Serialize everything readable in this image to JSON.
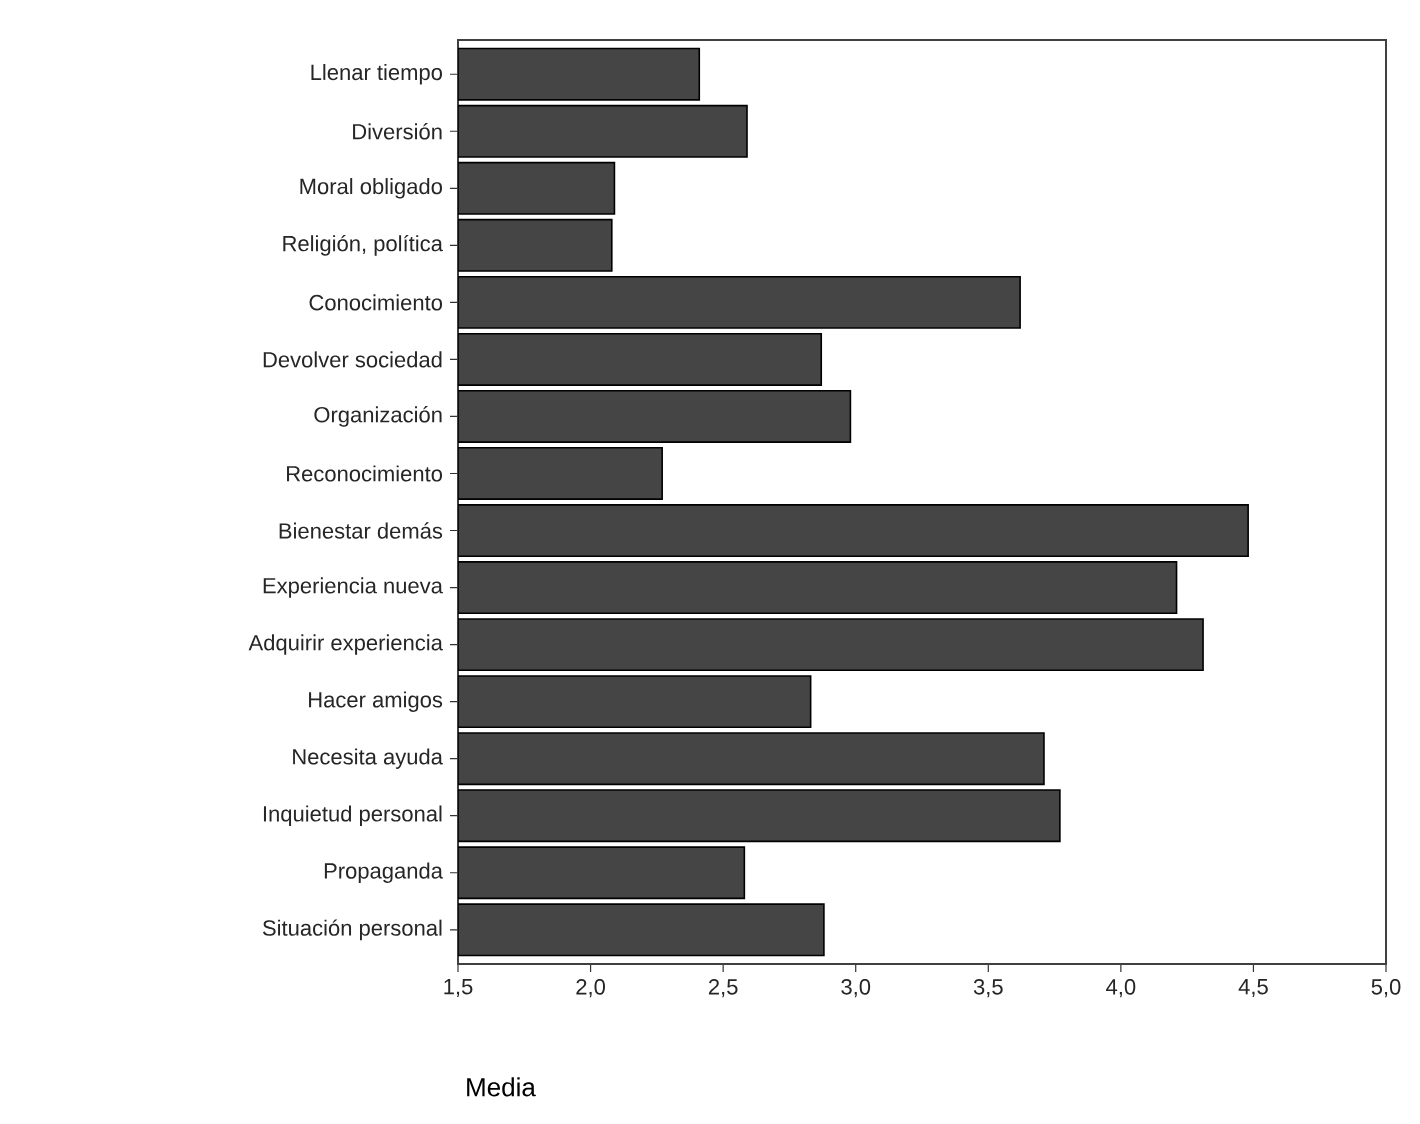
{
  "chart_data": {
    "type": "bar",
    "orientation": "horizontal",
    "xlabel": "Media",
    "categories": [
      "Llenar tiempo",
      "Diversión",
      "Moral obligado",
      "Religión, política",
      "Conocimiento",
      "Devolver sociedad",
      "Organización",
      "Reconocimiento",
      "Bienestar demás",
      "Experiencia nueva",
      "Adquirir experiencia",
      "Hacer amigos",
      "Necesita ayuda",
      "Inquietud personal",
      "Propaganda",
      "Situación personal"
    ],
    "values": [
      2.41,
      2.59,
      2.09,
      2.08,
      3.62,
      2.87,
      2.98,
      2.27,
      4.48,
      4.21,
      4.31,
      2.83,
      3.71,
      3.77,
      2.58,
      2.88
    ],
    "color": "#454545",
    "xlim": [
      1.5,
      5.0
    ],
    "xticks": [
      {
        "value": 1.5,
        "label": "1,5"
      },
      {
        "value": 2.0,
        "label": "2,0"
      },
      {
        "value": 2.5,
        "label": "2,5"
      },
      {
        "value": 3.0,
        "label": "3,0"
      },
      {
        "value": 3.5,
        "label": "3,5"
      },
      {
        "value": 4.0,
        "label": "4,0"
      },
      {
        "value": 4.5,
        "label": "4,5"
      },
      {
        "value": 5.0,
        "label": "5,0"
      }
    ]
  }
}
